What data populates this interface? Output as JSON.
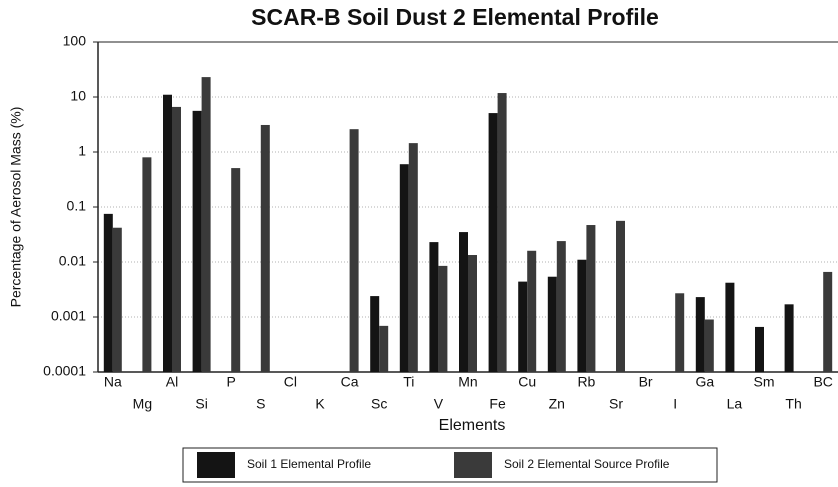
{
  "chart_data": {
    "type": "bar",
    "title": "SCAR-B Soil Dust 2 Elemental Profile",
    "xlabel": "Elements",
    "ylabel": "Percentage of Aerosol Mass (%)",
    "log_scale": true,
    "grid": true,
    "legend": "bottom",
    "categories": [
      "Na",
      "Mg",
      "Al",
      "Si",
      "P",
      "S",
      "Cl",
      "K",
      "Ca",
      "Sc",
      "Ti",
      "V",
      "Mn",
      "Fe",
      "Cu",
      "Zn",
      "Rb",
      "Sr",
      "Br",
      "I",
      "Ga",
      "La",
      "Sm",
      "Th",
      "BC"
    ],
    "series": [
      {
        "name": "Soil 1 Elemental Profile",
        "color": "#141414",
        "values": [
          0.075,
          null,
          11,
          5.6,
          null,
          null,
          null,
          null,
          null,
          0.0024,
          0.6,
          0.023,
          0.035,
          5.1,
          0.0044,
          0.0054,
          0.011,
          null,
          null,
          null,
          0.0023,
          0.0042,
          0.00066,
          0.0017,
          null
        ]
      },
      {
        "name": "Soil 2 Elemental Source Profile",
        "color": "#3a3a3a",
        "values": [
          0.042,
          0.8,
          6.6,
          23,
          0.51,
          3.1,
          null,
          null,
          2.6,
          0.00069,
          1.45,
          0.0085,
          0.0134,
          11.8,
          0.016,
          0.024,
          0.047,
          0.056,
          null,
          0.0027,
          0.0009,
          null,
          null,
          null,
          0.0066
        ]
      }
    ],
    "ylim": [
      0.0001,
      100
    ],
    "yticks": [
      0.0001,
      0.001,
      0.01,
      0.1,
      1,
      10,
      100
    ]
  }
}
